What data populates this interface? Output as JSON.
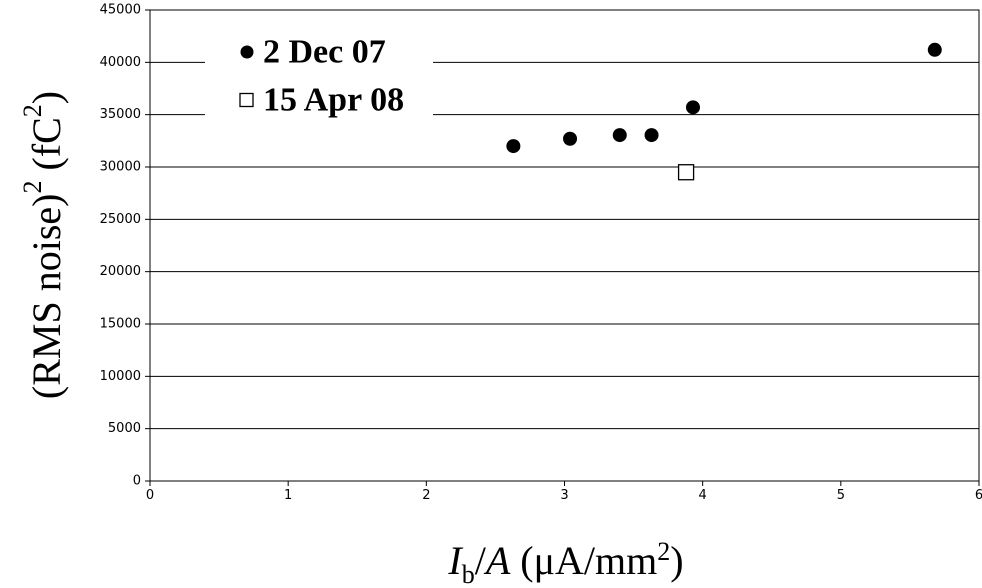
{
  "chart_data": {
    "type": "scatter",
    "title": "",
    "xlabel": {
      "symbol": "I",
      "subscript": "b",
      "rest": "/",
      "symbol2": "A",
      "unit": " (μA/mm",
      "unit_sup": "2",
      "unit_end": ")"
    },
    "ylabel": {
      "prefix": "(RMS noise)",
      "sup": "2",
      "unit": " (fC",
      "unit_sup": "2",
      "unit_end": ")"
    },
    "xlim": [
      0,
      6
    ],
    "ylim": [
      0,
      45000
    ],
    "x_ticks": [
      "0",
      "1",
      "2",
      "3",
      "4",
      "5",
      "6"
    ],
    "y_ticks": [
      "0",
      "5000",
      "10000",
      "15000",
      "20000",
      "25000",
      "30000",
      "35000",
      "40000",
      "45000"
    ],
    "grid": "horizontal",
    "legend_position": "top-left",
    "series": [
      {
        "name": "2 Dec 07",
        "marker": "filled-circle",
        "color": "#000000",
        "points": [
          {
            "x": 2.63,
            "y": 32000
          },
          {
            "x": 3.04,
            "y": 32700
          },
          {
            "x": 3.4,
            "y": 33050
          },
          {
            "x": 3.63,
            "y": 33050
          },
          {
            "x": 3.93,
            "y": 35700
          },
          {
            "x": 5.68,
            "y": 41200
          }
        ]
      },
      {
        "name": "15 Apr 08",
        "marker": "open-square",
        "color": "#000000",
        "points": [
          {
            "x": 3.88,
            "y": 29500
          }
        ]
      }
    ]
  }
}
